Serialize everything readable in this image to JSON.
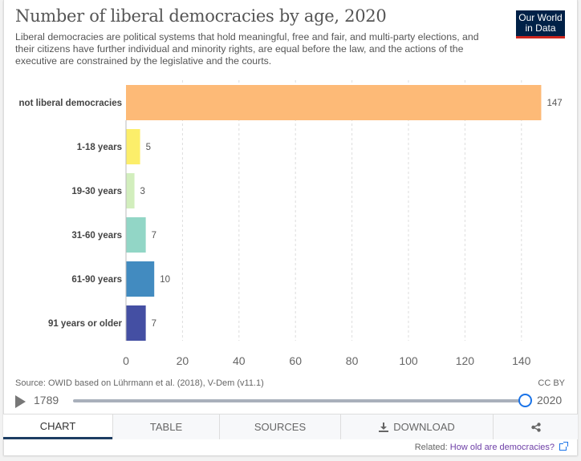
{
  "header": {
    "title": "Number of liberal democracies by age, 2020",
    "subtitle": "Liberal democracies are political systems that hold meaningful, free and fair, and multi-party elections, and their citizens have further individual and minority rights, are equal before the law, and the actions of the executive are constrained by the legislative and the courts.",
    "logo_line1": "Our World",
    "logo_line2": "in Data"
  },
  "chart_data": {
    "type": "bar",
    "orientation": "horizontal",
    "title": "Number of liberal democracies by age, 2020",
    "categories": [
      "not liberal democracies",
      "1-18 years",
      "19-30 years",
      "31-60 years",
      "61-90 years",
      "91 years or older"
    ],
    "values": [
      147,
      5,
      3,
      7,
      10,
      7
    ],
    "colors": [
      "#fdba77",
      "#fcee6a",
      "#d2eebd",
      "#92d6c6",
      "#428bc0",
      "#444fa3"
    ],
    "xlabel": "",
    "ylabel": "",
    "xlim": [
      0,
      147
    ],
    "xticks": [
      0,
      20,
      40,
      60,
      80,
      100,
      120,
      140
    ],
    "grid": "vertical dashed"
  },
  "footer": {
    "source": "Source: OWID based on Lührmann et al. (2018), V-Dem (v11.1)",
    "license": "CC BY",
    "timeline_start": "1789",
    "timeline_end": "2020",
    "timeline_position": 1.0
  },
  "tabs": [
    {
      "label": "CHART",
      "active": true
    },
    {
      "label": "TABLE",
      "active": false
    },
    {
      "label": "SOURCES",
      "active": false
    },
    {
      "label": "DOWNLOAD",
      "active": false,
      "icon": "download-icon"
    },
    {
      "label": "",
      "active": false,
      "icon": "share-icon"
    }
  ],
  "related": {
    "prefix": "Related: ",
    "link_text": "How old are democracies?"
  }
}
